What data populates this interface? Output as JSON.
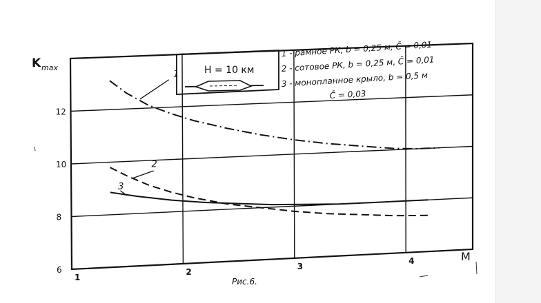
{
  "chart_data": {
    "type": "line",
    "ylabel": "K",
    "ylabel_sub": "max",
    "xlabel": "M",
    "caption": "Рис.6.",
    "xlim": [
      1,
      4.6
    ],
    "ylim": [
      6,
      14
    ],
    "x_ticks": [
      "1",
      "2",
      "3",
      "4"
    ],
    "y_ticks": [
      "6",
      "8",
      "10",
      "12"
    ],
    "grid": true,
    "inset_label": "H = 10 км",
    "legend": [
      "1 - рамное РК, b = 0,25 м, C̄ = 0,01",
      "2 - сотовое РК, b = 0,25 м, C̄ = 0,01",
      "3 - монопланное крыло, b = 0,5 м",
      "C̄ = 0,03"
    ],
    "series": [
      {
        "name": "1",
        "style": "dash-dot",
        "x": [
          1.35,
          1.5,
          1.7,
          1.9,
          2.1,
          2.4,
          2.7,
          3.0,
          3.3,
          3.6,
          3.9,
          4.1,
          4.3
        ],
        "y": [
          13.1,
          12.6,
          12.1,
          11.75,
          11.45,
          11.1,
          10.8,
          10.55,
          10.35,
          10.2,
          10.05,
          10.0,
          10.0
        ]
      },
      {
        "name": "2",
        "style": "dashed",
        "x": [
          1.35,
          1.5,
          1.7,
          1.9,
          2.1,
          2.4,
          2.7,
          3.0,
          3.3,
          3.6,
          3.9,
          4.2
        ],
        "y": [
          9.8,
          9.45,
          9.05,
          8.75,
          8.5,
          8.2,
          8.0,
          7.8,
          7.65,
          7.55,
          7.45,
          7.4
        ]
      },
      {
        "name": "3",
        "style": "solid",
        "x": [
          1.35,
          1.6,
          1.9,
          2.2,
          2.5,
          2.8,
          3.1,
          3.4,
          3.7,
          4.0,
          4.2
        ],
        "y": [
          8.85,
          8.65,
          8.45,
          8.3,
          8.2,
          8.1,
          8.05,
          8.0,
          8.0,
          8.0,
          8.0
        ]
      }
    ]
  },
  "colors": {
    "ink": "#111111",
    "paper": "#ffffff"
  }
}
